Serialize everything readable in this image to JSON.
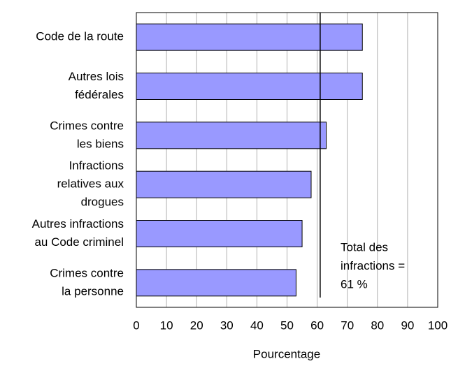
{
  "chart_data": {
    "type": "barh",
    "categories": [
      [
        "Code de la route"
      ],
      [
        "Autres lois",
        "fédérales"
      ],
      [
        "Crimes contre",
        "les biens"
      ],
      [
        "Infractions",
        "relatives aux",
        "drogues"
      ],
      [
        "Autres infractions",
        "au Code criminel"
      ],
      [
        "Crimes contre",
        "la personne"
      ]
    ],
    "values": [
      75,
      75,
      63,
      58,
      55,
      53
    ],
    "color": "#9999ff",
    "xlabel": "Pourcentage",
    "xlim": [
      0,
      100
    ],
    "xticks": [
      0,
      10,
      20,
      30,
      40,
      50,
      60,
      70,
      80,
      90,
      100
    ],
    "grid": true,
    "reference_line": {
      "value": 61,
      "annotation": [
        "Total des",
        "infractions =",
        "61 %"
      ]
    }
  }
}
